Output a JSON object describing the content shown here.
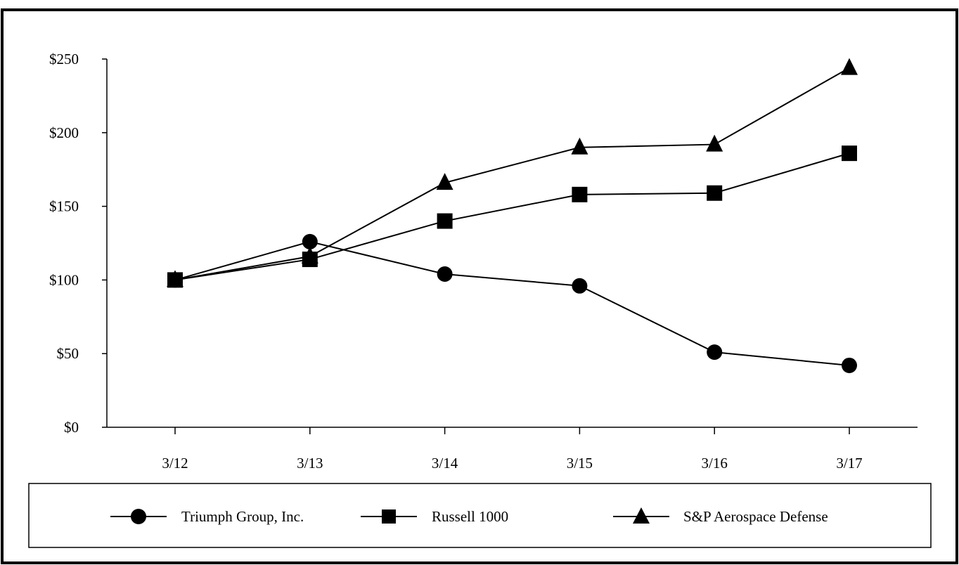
{
  "chart_data": {
    "type": "line",
    "title": "",
    "xlabel": "",
    "ylabel": "",
    "categories": [
      "3/12",
      "3/13",
      "3/14",
      "3/15",
      "3/16",
      "3/17"
    ],
    "y_ticks": [
      "$0",
      "$50",
      "$100",
      "$150",
      "$200",
      "$250"
    ],
    "ylim": [
      0,
      250
    ],
    "grid": false,
    "legend_position": "bottom",
    "series": [
      {
        "name": "Triumph Group, Inc.",
        "marker": "circle",
        "color": "#000000",
        "values": [
          100,
          126,
          104,
          96,
          51,
          42
        ]
      },
      {
        "name": "Russell 1000",
        "marker": "square",
        "color": "#000000",
        "values": [
          100,
          114,
          140,
          158,
          159,
          186
        ]
      },
      {
        "name": "S&P Aerospace Defense",
        "marker": "triangle",
        "color": "#000000",
        "values": [
          100,
          116,
          166,
          190,
          192,
          244
        ]
      }
    ]
  }
}
